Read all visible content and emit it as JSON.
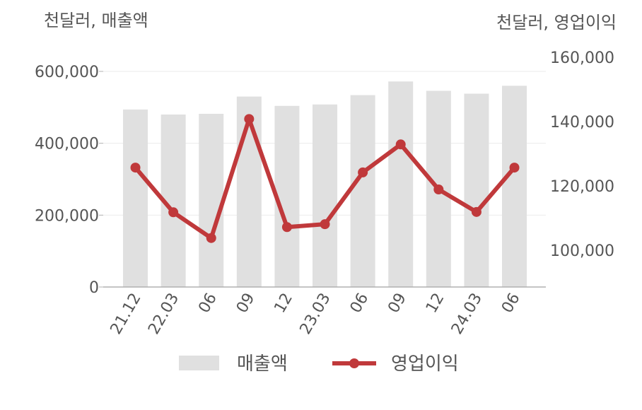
{
  "chart_data": {
    "type": "bar+line",
    "categories": [
      "21.12",
      "22.03",
      "06",
      "09",
      "12",
      "23.03",
      "06",
      "09",
      "12",
      "24.03",
      "06"
    ],
    "series": [
      {
        "name": "매출액",
        "type": "bar",
        "axis": "left",
        "color": "#e0e0e0",
        "values": [
          494000,
          480000,
          482000,
          530000,
          504000,
          508000,
          534000,
          572000,
          546000,
          538000,
          560000
        ]
      },
      {
        "name": "영업이익",
        "type": "line",
        "axis": "right",
        "color": "#c0393b",
        "values": [
          125700,
          111800,
          103800,
          140800,
          107200,
          108100,
          124200,
          132900,
          118900,
          111900,
          125700
        ]
      }
    ],
    "y_left": {
      "unit_label": "천달러, 매출액",
      "range": [
        0,
        600000
      ],
      "ticks": [
        0,
        200000,
        400000,
        600000
      ],
      "tick_labels": [
        "0",
        "200,000",
        "400,000",
        "600,000"
      ]
    },
    "y_right": {
      "unit_label": "천달러, 영업이익",
      "range": [
        88000,
        160000
      ],
      "ticks": [
        100000,
        120000,
        140000,
        160000
      ],
      "tick_labels": [
        "100,000",
        "120,000",
        "140,000",
        "160,000"
      ]
    },
    "grid": true,
    "legend_position": "bottom-center"
  }
}
